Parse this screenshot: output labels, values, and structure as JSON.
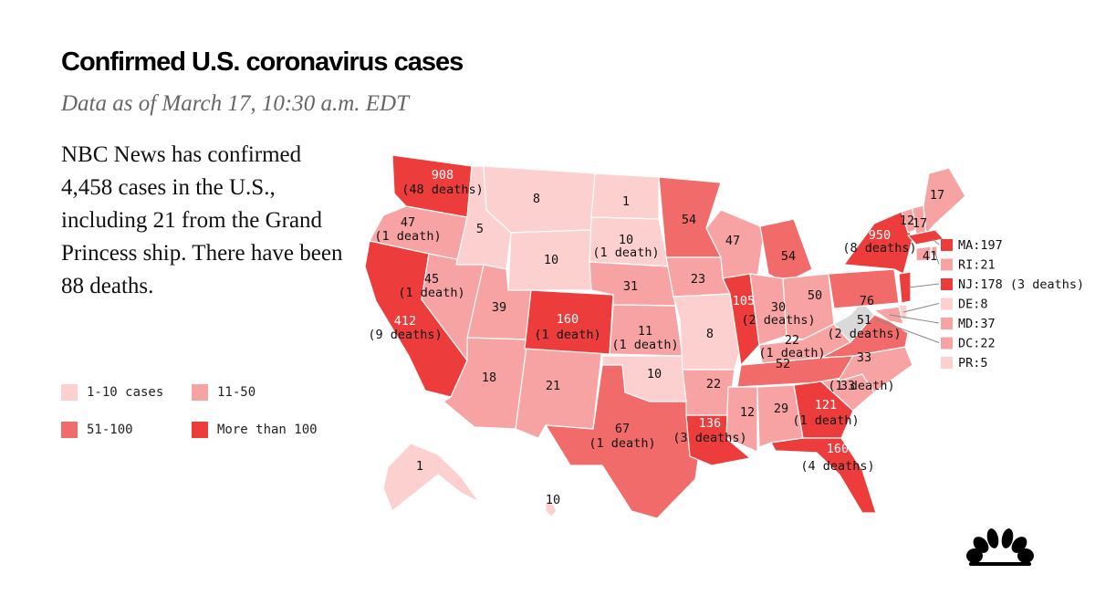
{
  "title": "Confirmed U.S. coronavirus cases",
  "subtitle": "Data as of March 17, 10:30 a.m. EDT",
  "summary": "NBC News has confirmed 4,458 cases in the U.S., including 21 from the Grand Princess ship. There have been 88 deaths.",
  "colors": {
    "c1_10": "#fdd0d0",
    "c11_50": "#f8a3a3",
    "c51_100": "#f26b6b",
    "c100plus": "#ec3c3c",
    "no_data": "#d9d9d9",
    "nbc_logo": "#000000"
  },
  "legend": [
    {
      "label": "1-10 cases",
      "color": "#fdd0d0"
    },
    {
      "label": "11-50",
      "color": "#f8a3a3"
    },
    {
      "label": "51-100",
      "color": "#f26b6b"
    },
    {
      "label": "More than 100",
      "color": "#ec3c3c"
    }
  ],
  "states": [
    {
      "id": "WA",
      "cases": "908",
      "deaths": "(48 deaths)"
    },
    {
      "id": "OR",
      "cases": "47",
      "deaths": "(1 death)"
    },
    {
      "id": "CA",
      "cases": "412",
      "deaths": "(9 deaths)"
    },
    {
      "id": "NV",
      "cases": "45",
      "deaths": "(1 death)"
    },
    {
      "id": "ID",
      "cases": "5",
      "deaths": ""
    },
    {
      "id": "MT",
      "cases": "8",
      "deaths": ""
    },
    {
      "id": "WY",
      "cases": "10",
      "deaths": ""
    },
    {
      "id": "UT",
      "cases": "39",
      "deaths": ""
    },
    {
      "id": "AZ",
      "cases": "18",
      "deaths": ""
    },
    {
      "id": "NM",
      "cases": "21",
      "deaths": ""
    },
    {
      "id": "CO",
      "cases": "160",
      "deaths": "(1 death)"
    },
    {
      "id": "ND",
      "cases": "1",
      "deaths": ""
    },
    {
      "id": "SD",
      "cases": "10",
      "deaths": "(1 death)"
    },
    {
      "id": "NE",
      "cases": "31",
      "deaths": ""
    },
    {
      "id": "KS",
      "cases": "11",
      "deaths": "(1 death)"
    },
    {
      "id": "OK",
      "cases": "10",
      "deaths": ""
    },
    {
      "id": "TX",
      "cases": "67",
      "deaths": "(1 death)"
    },
    {
      "id": "MN",
      "cases": "54",
      "deaths": ""
    },
    {
      "id": "IA",
      "cases": "23",
      "deaths": ""
    },
    {
      "id": "MO",
      "cases": "8",
      "deaths": ""
    },
    {
      "id": "AR",
      "cases": "22",
      "deaths": ""
    },
    {
      "id": "LA",
      "cases": "136",
      "deaths": "(3 deaths)"
    },
    {
      "id": "WI",
      "cases": "47",
      "deaths": ""
    },
    {
      "id": "IL",
      "cases": "105",
      "deaths": ""
    },
    {
      "id": "MI",
      "cases": "54",
      "deaths": ""
    },
    {
      "id": "IN",
      "cases": "30",
      "deaths": "(2 deaths)"
    },
    {
      "id": "OH",
      "cases": "50",
      "deaths": ""
    },
    {
      "id": "KY",
      "cases": "22",
      "deaths": "(1 death)"
    },
    {
      "id": "TN",
      "cases": "52",
      "deaths": ""
    },
    {
      "id": "MS",
      "cases": "12",
      "deaths": ""
    },
    {
      "id": "AL",
      "cases": "29",
      "deaths": ""
    },
    {
      "id": "GA",
      "cases": "121",
      "deaths": "(1 death)"
    },
    {
      "id": "FL",
      "cases": "160",
      "deaths": "(4 deaths)"
    },
    {
      "id": "SC",
      "cases": "33",
      "deaths": "(1 death)"
    },
    {
      "id": "NC",
      "cases": "33",
      "deaths": ""
    },
    {
      "id": "VA",
      "cases": "51",
      "deaths": "(2 deaths)"
    },
    {
      "id": "WV",
      "cases": "",
      "deaths": ""
    },
    {
      "id": "PA",
      "cases": "76",
      "deaths": ""
    },
    {
      "id": "NY",
      "cases": "950",
      "deaths": "(8 deaths)"
    },
    {
      "id": "VT",
      "cases": "12",
      "deaths": ""
    },
    {
      "id": "NH",
      "cases": "17",
      "deaths": ""
    },
    {
      "id": "ME",
      "cases": "17",
      "deaths": ""
    },
    {
      "id": "CT",
      "cases": "41",
      "deaths": ""
    },
    {
      "id": "AK",
      "cases": "1",
      "deaths": ""
    },
    {
      "id": "HI",
      "cases": "10",
      "deaths": ""
    }
  ],
  "callouts": [
    {
      "id": "MA",
      "text": "MA:197",
      "color": "#ec3c3c"
    },
    {
      "id": "RI",
      "text": "RI:21",
      "color": "#f8a3a3"
    },
    {
      "id": "NJ",
      "text": "NJ:178 (3 deaths)",
      "color": "#ec3c3c"
    },
    {
      "id": "DE",
      "text": "DE:8",
      "color": "#fdd0d0"
    },
    {
      "id": "MD",
      "text": "MD:37",
      "color": "#f8a3a3"
    },
    {
      "id": "DC",
      "text": "DC:22",
      "color": "#f8a3a3"
    },
    {
      "id": "PR",
      "text": "PR:5",
      "color": "#fdd0d0"
    }
  ]
}
